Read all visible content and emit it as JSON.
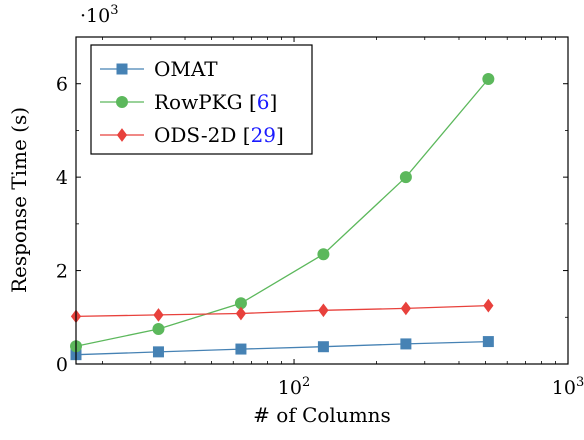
{
  "chart_data": {
    "type": "line",
    "xlabel": "# of Columns",
    "ylabel": "Response Time (s)",
    "x_scale": "log",
    "x_ticks": [
      {
        "value": 100,
        "label": "10",
        "exp": "2"
      },
      {
        "value": 1000,
        "label": "10",
        "exp": "3"
      }
    ],
    "xlim": [
      16,
      1000
    ],
    "ylim": [
      0,
      7000
    ],
    "y_ticks": [
      {
        "value": 0,
        "label": "0"
      },
      {
        "value": 2000,
        "label": "2"
      },
      {
        "value": 4000,
        "label": "4"
      },
      {
        "value": 6000,
        "label": "6"
      }
    ],
    "y_multiplier": {
      "base": "·10",
      "exp": "3"
    },
    "grid": false,
    "legend_position": "top-left",
    "series": [
      {
        "name": "OMAT",
        "name_ref": "",
        "color": "#4682b4",
        "marker": "square",
        "x": [
          16,
          32,
          64,
          128,
          256,
          512
        ],
        "y": [
          200,
          260,
          320,
          370,
          430,
          480
        ]
      },
      {
        "name": "RowPKG",
        "name_ref": "6",
        "color": "#5cb85c",
        "marker": "circle",
        "x": [
          16,
          32,
          64,
          128,
          256,
          512
        ],
        "y": [
          380,
          750,
          1300,
          2350,
          4000,
          6100
        ]
      },
      {
        "name": "ODS-2D",
        "name_ref": "29",
        "color": "#e8413c",
        "marker": "diamond",
        "x": [
          16,
          32,
          64,
          128,
          256,
          512
        ],
        "y": [
          1020,
          1050,
          1080,
          1150,
          1190,
          1250
        ]
      }
    ]
  }
}
